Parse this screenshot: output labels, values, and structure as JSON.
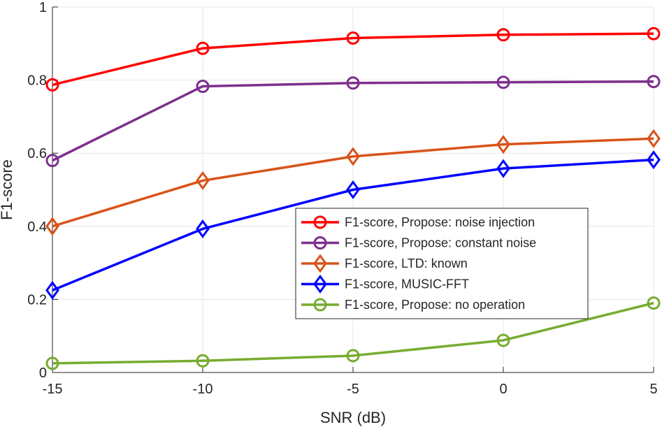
{
  "chart_data": {
    "type": "line",
    "title": "",
    "xlabel": "SNR (dB)",
    "ylabel": "F1-score",
    "x": [
      -15,
      -10,
      -5,
      0,
      5
    ],
    "xlim": [
      -15,
      5
    ],
    "ylim": [
      0,
      1
    ],
    "xticks": [
      -15,
      -10,
      -5,
      0,
      5
    ],
    "yticks": [
      0,
      0.2,
      0.4,
      0.6,
      0.8,
      1
    ],
    "xtick_labels": [
      "-15",
      "-10",
      "-5",
      "0",
      "5"
    ],
    "ytick_labels": [
      "0",
      "0.2",
      "0.4",
      "0.6",
      "0.8",
      "1"
    ],
    "grid": true,
    "legend_position": "center-right",
    "series": [
      {
        "name": "F1-score, Propose: noise injection",
        "color": "#ff0000",
        "marker": "circle",
        "values": [
          0.787,
          0.887,
          0.915,
          0.924,
          0.927
        ]
      },
      {
        "name": "F1-score, Propose: constant noise",
        "color": "#7e2f8e",
        "marker": "circle",
        "values": [
          0.58,
          0.783,
          0.792,
          0.794,
          0.796
        ]
      },
      {
        "name": "F1-score, LTD: known",
        "color": "#d95319",
        "marker": "diamond",
        "values": [
          0.4,
          0.525,
          0.591,
          0.624,
          0.64
        ]
      },
      {
        "name": "F1-score, MUSIC-FFT",
        "color": "#0000ff",
        "marker": "diamond",
        "values": [
          0.225,
          0.393,
          0.5,
          0.558,
          0.582
        ]
      },
      {
        "name": "F1-score, Propose: no operation",
        "color": "#77ac30",
        "marker": "circle",
        "values": [
          0.025,
          0.032,
          0.046,
          0.088,
          0.19
        ]
      }
    ]
  }
}
